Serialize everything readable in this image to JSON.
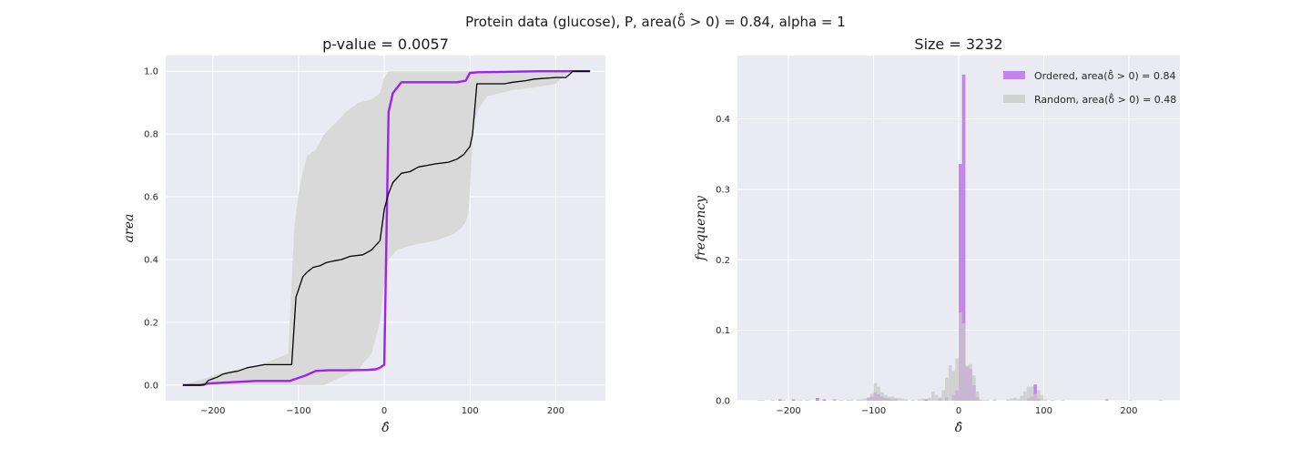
{
  "suptitle": "Protein data (glucose), P, area(δ̂ > 0) = 0.84, alpha = 1",
  "colors": {
    "panel_bg": "#eaeaf2",
    "grid": "#ffffff",
    "ordered": "#a020f0",
    "random_line": "#000000",
    "band": "#d9d9d9",
    "hist_ordered": "#b86be8",
    "hist_random": "#c8c8c8"
  },
  "chart_data": [
    {
      "type": "line",
      "title": "p-value = 0.0057",
      "xlabel": "δ̂",
      "ylabel": "area",
      "xlim": [
        -255,
        258
      ],
      "ylim": [
        -0.05,
        1.05
      ],
      "xticks": [
        -200,
        -100,
        0,
        100,
        200
      ],
      "yticks": [
        0.0,
        0.2,
        0.4,
        0.6,
        0.8,
        1.0
      ],
      "xtick_labels": [
        "−200",
        "−100",
        "0",
        "100",
        "200"
      ],
      "ytick_labels": [
        "0.0",
        "0.2",
        "0.4",
        "0.6",
        "0.8",
        "1.0"
      ],
      "grid": true,
      "series": [
        {
          "role": "ordered",
          "x": [
            -235,
            -215,
            -205,
            -185,
            -170,
            -150,
            -130,
            -110,
            -103,
            -92,
            -80,
            -65,
            -45,
            -20,
            -10,
            -5,
            0,
            5,
            10,
            20,
            40,
            60,
            85,
            95,
            100,
            110,
            140,
            180,
            210,
            240
          ],
          "y": [
            0.0,
            0.0,
            0.005,
            0.008,
            0.01,
            0.013,
            0.013,
            0.013,
            0.02,
            0.03,
            0.045,
            0.047,
            0.047,
            0.048,
            0.05,
            0.055,
            0.065,
            0.87,
            0.93,
            0.965,
            0.965,
            0.965,
            0.965,
            0.97,
            0.995,
            0.997,
            0.998,
            1.0,
            1.0,
            1.0
          ]
        },
        {
          "role": "random",
          "x": [
            -235,
            -210,
            -205,
            -195,
            -188,
            -180,
            -170,
            -160,
            -150,
            -140,
            -128,
            -115,
            -108,
            -103,
            -95,
            -90,
            -83,
            -75,
            -68,
            -60,
            -50,
            -40,
            -25,
            -15,
            -5,
            0,
            5,
            10,
            20,
            30,
            40,
            50,
            60,
            75,
            85,
            93,
            97,
            100,
            103,
            108,
            140,
            150,
            165,
            175,
            200,
            212,
            220,
            240
          ],
          "y": [
            0.0,
            0.0,
            0.015,
            0.025,
            0.035,
            0.04,
            0.045,
            0.055,
            0.06,
            0.065,
            0.065,
            0.065,
            0.065,
            0.28,
            0.345,
            0.36,
            0.375,
            0.38,
            0.39,
            0.395,
            0.4,
            0.41,
            0.415,
            0.43,
            0.46,
            0.56,
            0.61,
            0.645,
            0.675,
            0.68,
            0.695,
            0.7,
            0.705,
            0.71,
            0.72,
            0.735,
            0.75,
            0.76,
            0.8,
            0.96,
            0.96,
            0.965,
            0.97,
            0.975,
            0.98,
            0.98,
            1.0,
            1.0
          ]
        }
      ],
      "band": {
        "x": [
          -235,
          -210,
          -190,
          -170,
          -150,
          -130,
          -112,
          -105,
          -100,
          -95,
          -90,
          -80,
          -70,
          -55,
          -45,
          -30,
          -15,
          -5,
          0,
          5,
          15,
          25,
          40,
          60,
          80,
          90,
          95,
          98,
          100,
          104,
          110,
          120,
          150,
          180,
          200,
          215,
          240
        ],
        "lower": [
          0.0,
          0.0,
          0.0,
          0.0,
          0.0,
          0.0,
          0.0,
          0.0,
          0.0,
          0.0,
          0.0,
          0.0,
          0.0,
          0.02,
          0.03,
          0.05,
          0.1,
          0.2,
          0.32,
          0.4,
          0.43,
          0.44,
          0.45,
          0.46,
          0.48,
          0.5,
          0.52,
          0.55,
          0.62,
          0.83,
          0.88,
          0.92,
          0.94,
          0.95,
          0.96,
          1.0,
          1.0
        ],
        "upper": [
          0.0,
          0.02,
          0.04,
          0.05,
          0.06,
          0.08,
          0.1,
          0.5,
          0.61,
          0.68,
          0.73,
          0.75,
          0.8,
          0.84,
          0.87,
          0.9,
          0.91,
          0.93,
          0.98,
          1.0,
          1.0,
          1.0,
          1.0,
          1.0,
          1.0,
          1.0,
          1.0,
          1.0,
          1.0,
          1.0,
          1.0,
          1.0,
          1.0,
          1.0,
          1.0,
          1.0,
          1.0
        ]
      }
    },
    {
      "type": "bar",
      "title": "Size = 3232",
      "xlabel": "δ̂",
      "ylabel": "frequency",
      "xlim": [
        -260,
        260
      ],
      "ylim": [
        0,
        0.49
      ],
      "xticks": [
        -200,
        -100,
        0,
        100,
        200
      ],
      "yticks": [
        0.0,
        0.1,
        0.2,
        0.3,
        0.4
      ],
      "xtick_labels": [
        "−200",
        "−100",
        "0",
        "100",
        "200"
      ],
      "ytick_labels": [
        "0.0",
        "0.1",
        "0.2",
        "0.3",
        "0.4"
      ],
      "grid": true,
      "legend_position": "top-right",
      "bin_width": 4,
      "series": [
        {
          "name": "Ordered, area(δ̂ > 0) = 0.84",
          "role": "ordered",
          "bins": [
            -212,
            -196,
            -168,
            -160,
            -148,
            -108,
            -104,
            -100,
            -96,
            -92,
            -88,
            -84,
            -80,
            -76,
            -40,
            -24,
            -16,
            -8,
            -4,
            0,
            4,
            8,
            12,
            16,
            20,
            80,
            84,
            88,
            92,
            172
          ],
          "values": [
            0.002,
            0.002,
            0.004,
            0.002,
            0.002,
            0.004,
            0.006,
            0.012,
            0.009,
            0.006,
            0.004,
            0.003,
            0.002,
            0.002,
            0.002,
            0.003,
            0.005,
            0.008,
            0.015,
            0.336,
            0.463,
            0.048,
            0.045,
            0.022,
            0.005,
            0.003,
            0.006,
            0.023,
            0.003,
            0.002
          ]
        },
        {
          "name": "Random, area(δ̂ > 0) = 0.48",
          "role": "random",
          "bins": [
            -236,
            -232,
            -220,
            -208,
            -188,
            -180,
            -148,
            -140,
            -132,
            -128,
            -120,
            -116,
            -112,
            -108,
            -104,
            -100,
            -96,
            -92,
            -88,
            -84,
            -80,
            -76,
            -72,
            -68,
            -64,
            -56,
            -48,
            -44,
            -36,
            -32,
            -28,
            -24,
            -20,
            -16,
            -12,
            -8,
            -4,
            0,
            4,
            8,
            12,
            16,
            20,
            24,
            28,
            32,
            40,
            56,
            60,
            64,
            68,
            72,
            76,
            80,
            84,
            88,
            92,
            96,
            100,
            108,
            120,
            172,
            200,
            236
          ],
          "values": [
            0.001,
            0.001,
            0.001,
            0.001,
            0.001,
            0.001,
            0.001,
            0.001,
            0.001,
            0.002,
            0.002,
            0.002,
            0.003,
            0.005,
            0.01,
            0.025,
            0.02,
            0.012,
            0.008,
            0.006,
            0.006,
            0.004,
            0.004,
            0.003,
            0.002,
            0.001,
            0.002,
            0.003,
            0.004,
            0.013,
            0.008,
            0.005,
            0.015,
            0.033,
            0.05,
            0.042,
            0.06,
            0.125,
            0.11,
            0.05,
            0.052,
            0.036,
            0.013,
            0.002,
            0.001,
            0.001,
            0.002,
            0.002,
            0.003,
            0.004,
            0.003,
            0.007,
            0.013,
            0.02,
            0.02,
            0.01,
            0.015,
            0.008,
            0.002,
            0.001,
            0.001,
            0.001,
            0.001,
            0.001
          ]
        }
      ]
    }
  ]
}
